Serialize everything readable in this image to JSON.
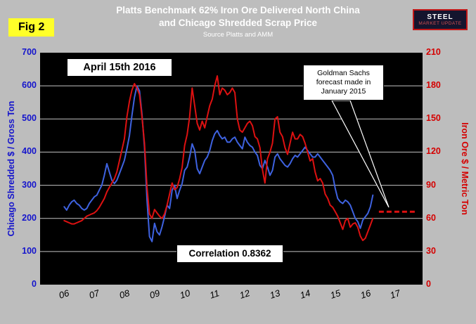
{
  "header": {
    "fig_label": "Fig 2",
    "title_line1": "Platts Benchmark 62% Iron Ore Delivered North China",
    "title_line2": "and Chicago Shredded Scrap Price",
    "source": "Source Platts and AMM",
    "logo": {
      "line1": "STEEL",
      "line2": "MARKET UPDATE"
    }
  },
  "annotations": {
    "date_label": "April 15th 2016",
    "forecast_note_line1": "Goldman Sachs",
    "forecast_note_line2": "forecast made in",
    "forecast_note_line3": "January 2015",
    "correlation_label": "Correlation 0.8362"
  },
  "axes": {
    "left_title": "Chicago Shredded $ / Gross Ton",
    "right_title": "Iron Ore $ / Metric Ton",
    "left_ticks": [
      700,
      600,
      500,
      400,
      300,
      200,
      100,
      0
    ],
    "right_ticks": [
      210,
      180,
      150,
      120,
      90,
      60,
      30,
      0
    ],
    "x_ticks": [
      "06",
      "07",
      "08",
      "09",
      "10",
      "11",
      "12",
      "13",
      "14",
      "15",
      "16",
      "17"
    ]
  },
  "colors": {
    "background": "#bdbdbd",
    "plot_background": "#000000",
    "gridline": "#e6e6e6",
    "scrap_line": "#3e62e0",
    "iron_line": "#dd1111",
    "left_axis": "#1414cc",
    "right_axis": "#d50000",
    "fig_badge": "#ffff29"
  },
  "chart_data": {
    "type": "line",
    "title": "Platts Benchmark 62% Iron Ore Delivered North China and Chicago Shredded Scrap Price",
    "source": "Source Platts and AMM",
    "correlation": 0.8362,
    "as_of_date": "April 15th 2016",
    "x_start_year": 2006,
    "x_interval_months": 1,
    "xlim": [
      2005.2,
      2017.9
    ],
    "left_ylim": [
      0,
      700
    ],
    "right_ylim": [
      0,
      210
    ],
    "grid": "horizontal",
    "series": [
      {
        "name": "Chicago Shredded Scrap ($/Gross Ton)",
        "axis": "left",
        "color": "#3e62e0",
        "values": [
          235,
          225,
          240,
          250,
          255,
          245,
          240,
          230,
          225,
          230,
          245,
          255,
          265,
          270,
          285,
          300,
          330,
          365,
          340,
          315,
          305,
          315,
          335,
          355,
          375,
          410,
          450,
          510,
          565,
          600,
          585,
          515,
          415,
          255,
          145,
          130,
          185,
          160,
          150,
          175,
          205,
          240,
          230,
          285,
          300,
          260,
          285,
          305,
          345,
          355,
          385,
          425,
          405,
          350,
          335,
          355,
          375,
          385,
          405,
          435,
          455,
          465,
          450,
          440,
          445,
          430,
          430,
          440,
          445,
          430,
          420,
          410,
          445,
          430,
          420,
          415,
          400,
          390,
          360,
          350,
          375,
          355,
          330,
          345,
          385,
          395,
          380,
          370,
          360,
          355,
          365,
          380,
          390,
          385,
          395,
          405,
          415,
          405,
          395,
          385,
          385,
          395,
          385,
          375,
          365,
          355,
          345,
          330,
          290,
          260,
          250,
          245,
          255,
          250,
          240,
          220,
          200,
          190,
          170,
          195,
          205,
          215,
          235,
          270
        ]
      },
      {
        "name": "Platts 62% Iron Ore Delivered North China ($/Metric Ton)",
        "axis": "right",
        "color": "#dd1111",
        "values": [
          58,
          57,
          56,
          55,
          55,
          56,
          57,
          58,
          60,
          62,
          63,
          64,
          65,
          67,
          70,
          74,
          78,
          84,
          88,
          92,
          96,
          102,
          112,
          122,
          132,
          152,
          166,
          176,
          182,
          178,
          172,
          152,
          128,
          88,
          64,
          60,
          68,
          65,
          62,
          60,
          64,
          72,
          82,
          92,
          86,
          88,
          96,
          106,
          126,
          136,
          152,
          178,
          162,
          146,
          140,
          148,
          142,
          152,
          162,
          168,
          180,
          189,
          172,
          178,
          176,
          172,
          174,
          178,
          174,
          150,
          140,
          138,
          142,
          146,
          148,
          144,
          134,
          132,
          124,
          104,
          92,
          114,
          120,
          128,
          150,
          152,
          138,
          134,
          124,
          118,
          128,
          138,
          132,
          132,
          136,
          134,
          128,
          120,
          112,
          114,
          102,
          94,
          96,
          92,
          82,
          78,
          72,
          70,
          66,
          62,
          56,
          50,
          58,
          60,
          52,
          55,
          56,
          52,
          44,
          40,
          42,
          48,
          54,
          60
        ]
      }
    ],
    "forecast": {
      "label": "Goldman Sachs forecast made in January 2015",
      "axis": "right",
      "value": 66,
      "x_start": 2016.45,
      "x_end": 2017.7,
      "style": "dashed",
      "color": "#dd1111"
    }
  }
}
